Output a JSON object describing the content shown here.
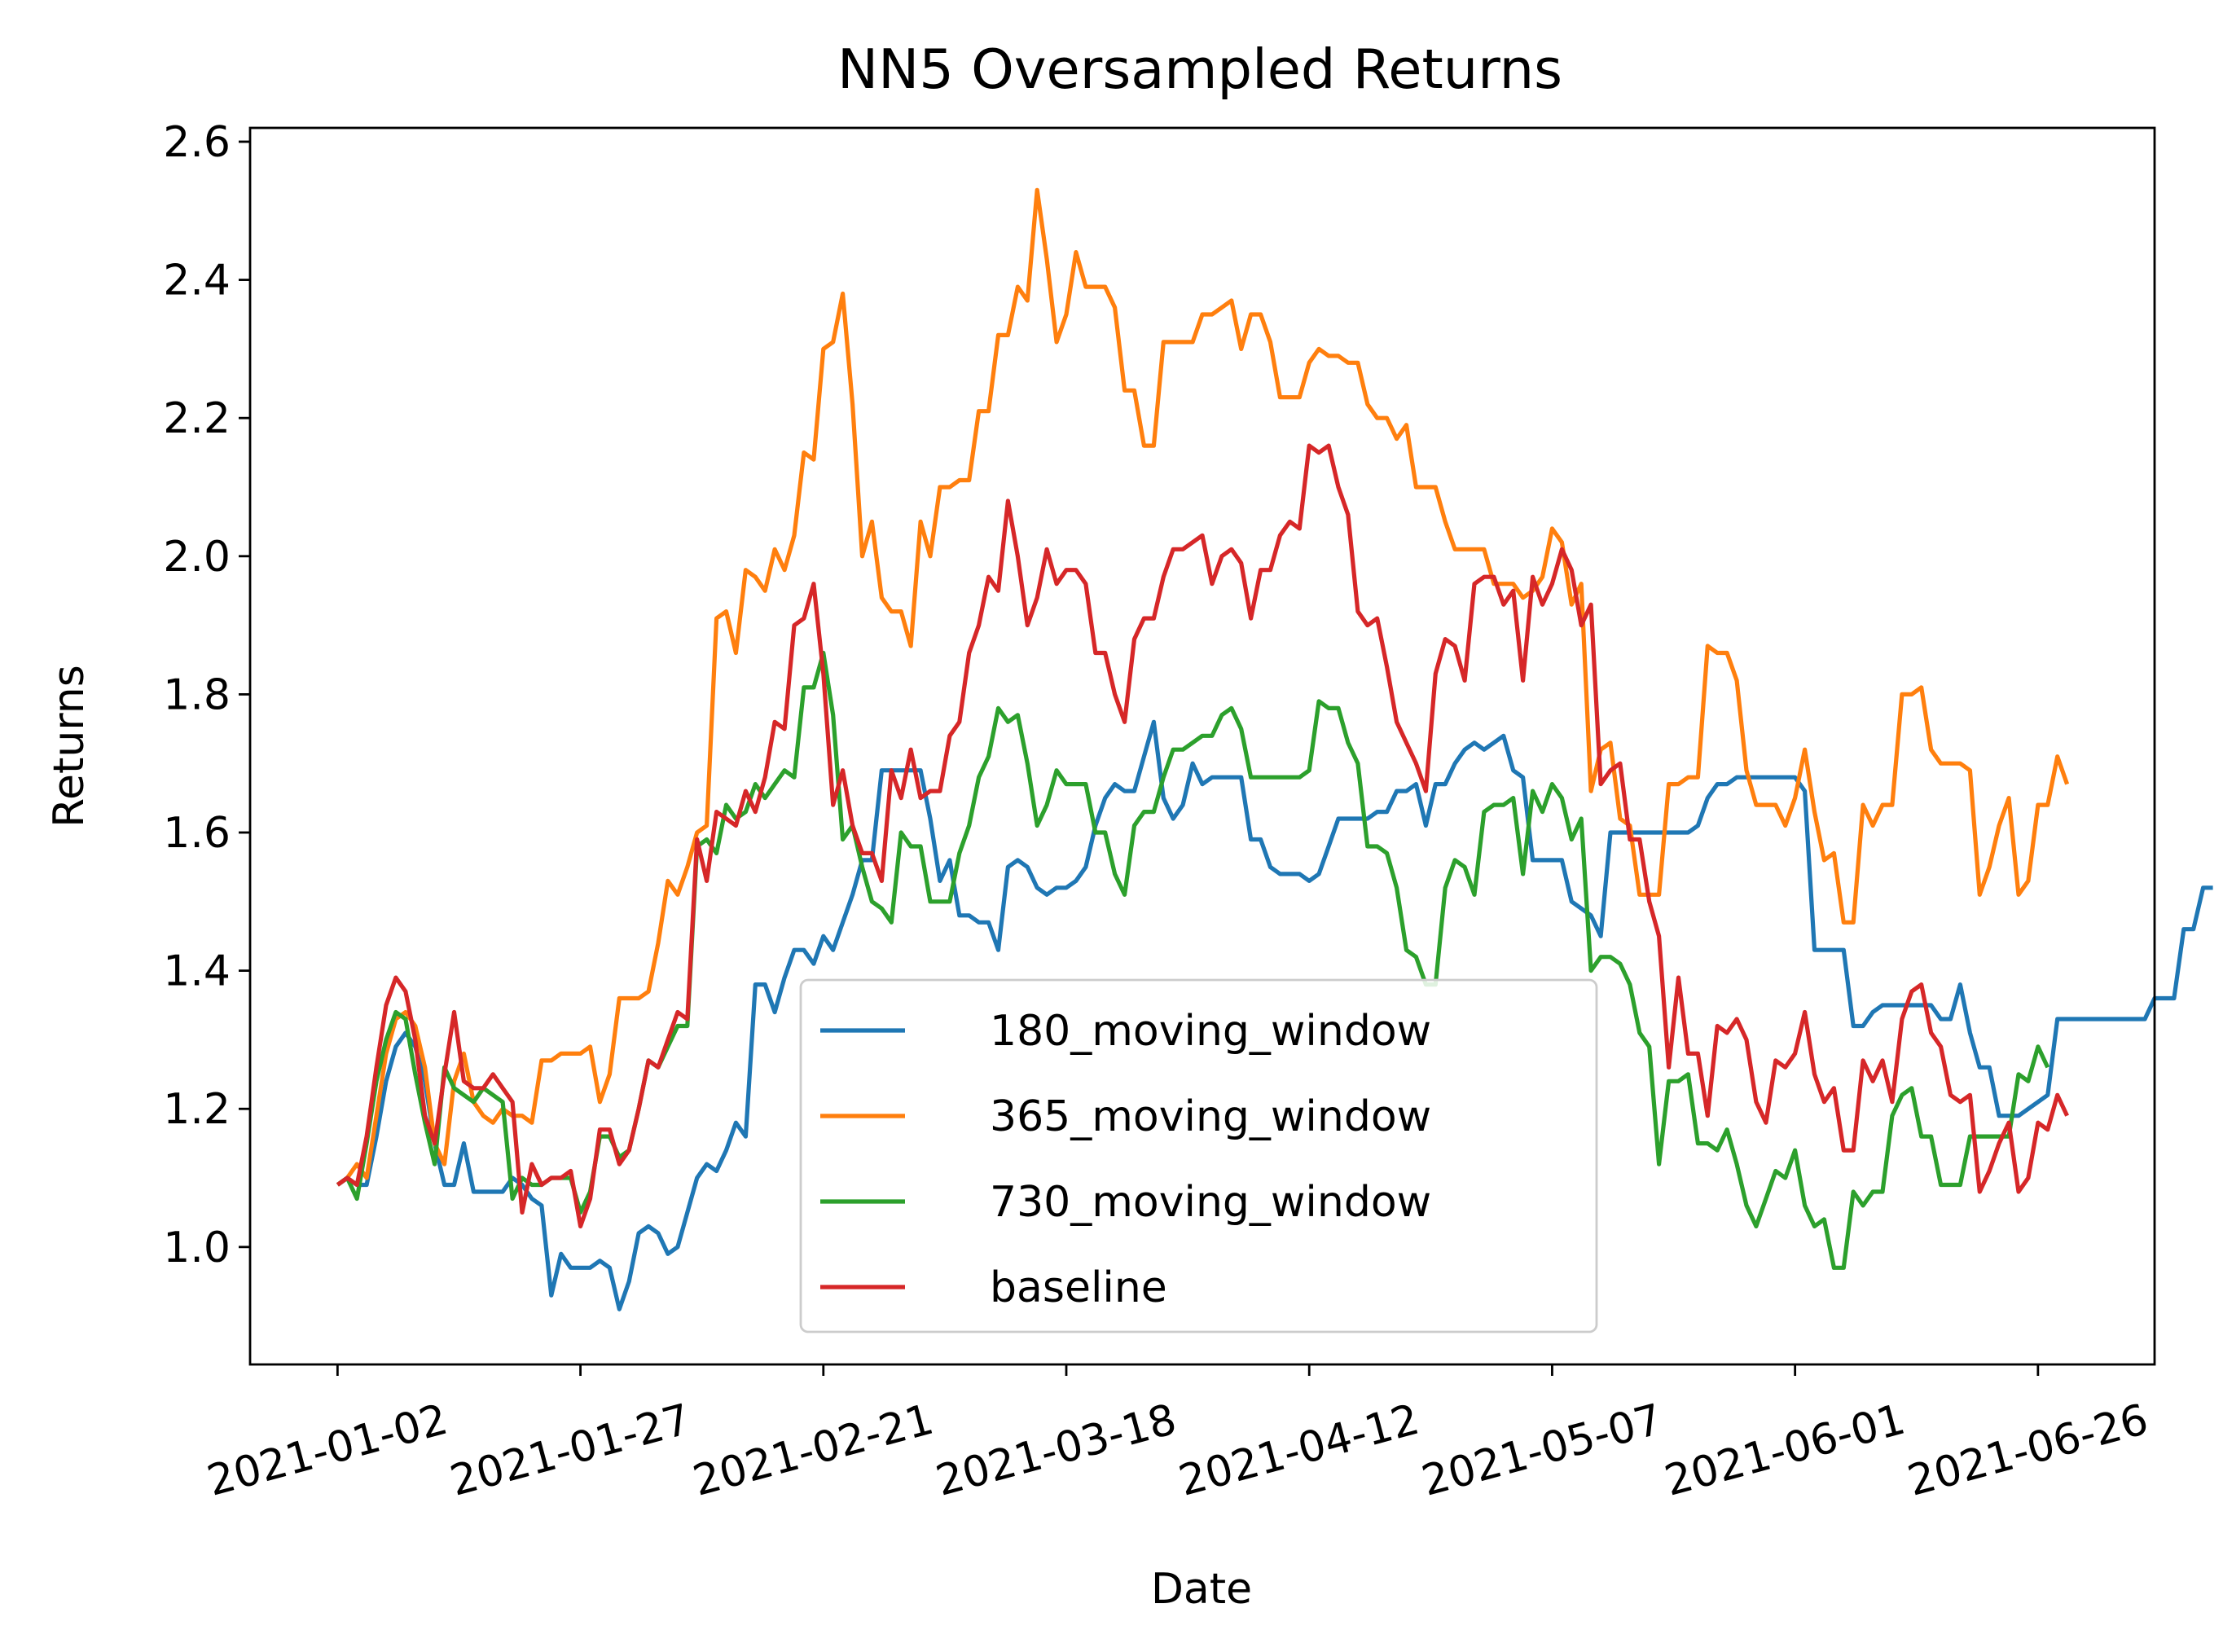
{
  "chart_data": {
    "type": "line",
    "title": "NN5 Oversampled Returns",
    "xlabel": "Date",
    "ylabel": "Returns",
    "x_start": "2021-01-02",
    "x_end": "2021-06-30",
    "xlim": [
      "2020-12-24",
      "2021-07-08"
    ],
    "ylim": [
      0.83,
      2.62
    ],
    "x_ticks": [
      "2021-01-02",
      "2021-01-27",
      "2021-02-21",
      "2021-03-18",
      "2021-04-12",
      "2021-05-07",
      "2021-06-01",
      "2021-06-26"
    ],
    "y_ticks": [
      "1.0",
      "1.2",
      "1.4",
      "1.6",
      "1.8",
      "2.0",
      "2.2",
      "2.4",
      "2.6"
    ],
    "grid": false,
    "legend_position": "lower-center",
    "series": [
      {
        "name": "180_moving_window",
        "color": "#1f77b4",
        "values": [
          1.09,
          1.1,
          1.09,
          1.09,
          1.16,
          1.24,
          1.29,
          1.31,
          1.29,
          1.24,
          1.15,
          1.09,
          1.09,
          1.15,
          1.08,
          1.08,
          1.08,
          1.08,
          1.1,
          1.09,
          1.07,
          1.06,
          0.93,
          0.99,
          0.97,
          0.97,
          0.97,
          0.98,
          0.97,
          0.91,
          0.95,
          1.02,
          1.03,
          1.02,
          0.99,
          1.0,
          1.05,
          1.1,
          1.12,
          1.11,
          1.14,
          1.18,
          1.16,
          1.38,
          1.38,
          1.34,
          1.39,
          1.43,
          1.43,
          1.41,
          1.45,
          1.43,
          1.47,
          1.51,
          1.56,
          1.56,
          1.69,
          1.69,
          1.69,
          1.69,
          1.69,
          1.62,
          1.53,
          1.56,
          1.48,
          1.48,
          1.47,
          1.47,
          1.43,
          1.55,
          1.56,
          1.55,
          1.52,
          1.51,
          1.52,
          1.52,
          1.53,
          1.55,
          1.61,
          1.65,
          1.67,
          1.66,
          1.66,
          1.71,
          1.76,
          1.65,
          1.62,
          1.64,
          1.7,
          1.67,
          1.68,
          1.68,
          1.68,
          1.68,
          1.59,
          1.59,
          1.55,
          1.54,
          1.54,
          1.54,
          1.53,
          1.54,
          1.58,
          1.62,
          1.62,
          1.62,
          1.62,
          1.63,
          1.63,
          1.66,
          1.66,
          1.67,
          1.61,
          1.67,
          1.67,
          1.7,
          1.72,
          1.73,
          1.72,
          1.73,
          1.74,
          1.69,
          1.68,
          1.56,
          1.56,
          1.56,
          1.56,
          1.5,
          1.49,
          1.48,
          1.45,
          1.6,
          1.6,
          1.6,
          1.6,
          1.6,
          1.6,
          1.6,
          1.6,
          1.6,
          1.61,
          1.65,
          1.67,
          1.67,
          1.68,
          1.68,
          1.68,
          1.68,
          1.68,
          1.68,
          1.68,
          1.66,
          1.43,
          1.43,
          1.43,
          1.43,
          1.32,
          1.32,
          1.34,
          1.35,
          1.35,
          1.35,
          1.35,
          1.35,
          1.35,
          1.33,
          1.33,
          1.38,
          1.31,
          1.26,
          1.26,
          1.19,
          1.19,
          1.19,
          1.2,
          1.21,
          1.22,
          1.33,
          1.33,
          1.33,
          1.33,
          1.33,
          1.33,
          1.33,
          1.33,
          1.33,
          1.33,
          1.36,
          1.36,
          1.36,
          1.46,
          1.46,
          1.52,
          1.52
        ]
      },
      {
        "name": "365_moving_window",
        "color": "#ff7f0e",
        "values": [
          1.09,
          1.1,
          1.12,
          1.1,
          1.19,
          1.28,
          1.33,
          1.34,
          1.32,
          1.26,
          1.15,
          1.12,
          1.24,
          1.28,
          1.21,
          1.19,
          1.18,
          1.2,
          1.19,
          1.19,
          1.18,
          1.27,
          1.27,
          1.28,
          1.28,
          1.28,
          1.29,
          1.21,
          1.25,
          1.36,
          1.36,
          1.36,
          1.37,
          1.44,
          1.53,
          1.51,
          1.55,
          1.6,
          1.61,
          1.91,
          1.92,
          1.86,
          1.98,
          1.97,
          1.95,
          2.01,
          1.98,
          2.03,
          2.15,
          2.14,
          2.3,
          2.31,
          2.38,
          2.22,
          2.0,
          2.05,
          1.94,
          1.92,
          1.92,
          1.87,
          2.05,
          2.0,
          2.1,
          2.1,
          2.11,
          2.11,
          2.21,
          2.21,
          2.32,
          2.32,
          2.39,
          2.37,
          2.53,
          2.43,
          2.31,
          2.35,
          2.44,
          2.39,
          2.39,
          2.39,
          2.36,
          2.24,
          2.24,
          2.16,
          2.16,
          2.31,
          2.31,
          2.31,
          2.31,
          2.35,
          2.35,
          2.36,
          2.37,
          2.3,
          2.35,
          2.35,
          2.31,
          2.23,
          2.23,
          2.23,
          2.28,
          2.3,
          2.29,
          2.29,
          2.28,
          2.28,
          2.22,
          2.2,
          2.2,
          2.17,
          2.19,
          2.1,
          2.1,
          2.1,
          2.05,
          2.01,
          2.01,
          2.01,
          2.01,
          1.96,
          1.96,
          1.96,
          1.94,
          1.95,
          1.97,
          2.04,
          2.02,
          1.93,
          1.96,
          1.66,
          1.72,
          1.73,
          1.62,
          1.61,
          1.51,
          1.51,
          1.51,
          1.67,
          1.67,
          1.68,
          1.68,
          1.87,
          1.86,
          1.86,
          1.82,
          1.69,
          1.64,
          1.64,
          1.64,
          1.61,
          1.65,
          1.72,
          1.63,
          1.56,
          1.57,
          1.47,
          1.47,
          1.64,
          1.61,
          1.64,
          1.64,
          1.8,
          1.8,
          1.81,
          1.72,
          1.7,
          1.7,
          1.7,
          1.69,
          1.51,
          1.55,
          1.61,
          1.65,
          1.51,
          1.53,
          1.64,
          1.64,
          1.71,
          1.67
        ]
      },
      {
        "name": "730_moving_window",
        "color": "#2ca02c",
        "values": [
          1.09,
          1.1,
          1.07,
          1.15,
          1.24,
          1.3,
          1.34,
          1.33,
          1.25,
          1.18,
          1.12,
          1.26,
          1.23,
          1.22,
          1.21,
          1.23,
          1.22,
          1.21,
          1.07,
          1.1,
          1.09,
          1.09,
          1.1,
          1.1,
          1.1,
          1.05,
          1.08,
          1.16,
          1.16,
          1.13,
          1.14,
          1.2,
          1.27,
          1.26,
          1.29,
          1.32,
          1.32,
          1.58,
          1.59,
          1.57,
          1.64,
          1.62,
          1.63,
          1.67,
          1.65,
          1.67,
          1.69,
          1.68,
          1.81,
          1.81,
          1.86,
          1.77,
          1.59,
          1.61,
          1.55,
          1.5,
          1.49,
          1.47,
          1.6,
          1.58,
          1.58,
          1.5,
          1.5,
          1.5,
          1.57,
          1.61,
          1.68,
          1.71,
          1.78,
          1.76,
          1.77,
          1.7,
          1.61,
          1.64,
          1.69,
          1.67,
          1.67,
          1.67,
          1.6,
          1.6,
          1.54,
          1.51,
          1.61,
          1.63,
          1.63,
          1.68,
          1.72,
          1.72,
          1.73,
          1.74,
          1.74,
          1.77,
          1.78,
          1.75,
          1.68,
          1.68,
          1.68,
          1.68,
          1.68,
          1.68,
          1.69,
          1.79,
          1.78,
          1.78,
          1.73,
          1.7,
          1.58,
          1.58,
          1.57,
          1.52,
          1.43,
          1.42,
          1.38,
          1.38,
          1.52,
          1.56,
          1.55,
          1.51,
          1.63,
          1.64,
          1.64,
          1.65,
          1.54,
          1.66,
          1.63,
          1.67,
          1.65,
          1.59,
          1.62,
          1.4,
          1.42,
          1.42,
          1.41,
          1.38,
          1.31,
          1.29,
          1.12,
          1.24,
          1.24,
          1.25,
          1.15,
          1.15,
          1.14,
          1.17,
          1.12,
          1.06,
          1.03,
          1.07,
          1.11,
          1.1,
          1.14,
          1.06,
          1.03,
          1.04,
          0.97,
          0.97,
          1.08,
          1.06,
          1.08,
          1.08,
          1.19,
          1.22,
          1.23,
          1.16,
          1.16,
          1.09,
          1.09,
          1.09,
          1.16,
          1.16,
          1.16,
          1.16,
          1.16,
          1.25,
          1.24,
          1.29,
          1.26
        ]
      },
      {
        "name": "baseline",
        "color": "#d62728",
        "values": [
          1.09,
          1.1,
          1.09,
          1.16,
          1.26,
          1.35,
          1.39,
          1.37,
          1.3,
          1.19,
          1.15,
          1.25,
          1.34,
          1.24,
          1.23,
          1.23,
          1.25,
          1.23,
          1.21,
          1.05,
          1.12,
          1.09,
          1.1,
          1.1,
          1.11,
          1.03,
          1.07,
          1.17,
          1.17,
          1.12,
          1.14,
          1.2,
          1.27,
          1.26,
          1.3,
          1.34,
          1.33,
          1.59,
          1.53,
          1.63,
          1.62,
          1.61,
          1.66,
          1.63,
          1.68,
          1.76,
          1.75,
          1.9,
          1.91,
          1.96,
          1.83,
          1.64,
          1.69,
          1.61,
          1.57,
          1.57,
          1.53,
          1.69,
          1.65,
          1.72,
          1.65,
          1.66,
          1.66,
          1.74,
          1.76,
          1.86,
          1.9,
          1.97,
          1.95,
          2.08,
          2.0,
          1.9,
          1.94,
          2.01,
          1.96,
          1.98,
          1.98,
          1.96,
          1.86,
          1.86,
          1.8,
          1.76,
          1.88,
          1.91,
          1.91,
          1.97,
          2.01,
          2.01,
          2.02,
          2.03,
          1.96,
          2.0,
          2.01,
          1.99,
          1.91,
          1.98,
          1.98,
          2.03,
          2.05,
          2.04,
          2.16,
          2.15,
          2.16,
          2.1,
          2.06,
          1.92,
          1.9,
          1.91,
          1.84,
          1.76,
          1.73,
          1.7,
          1.66,
          1.83,
          1.88,
          1.87,
          1.82,
          1.96,
          1.97,
          1.97,
          1.93,
          1.95,
          1.82,
          1.97,
          1.93,
          1.96,
          2.01,
          1.98,
          1.9,
          1.93,
          1.67,
          1.69,
          1.7,
          1.59,
          1.59,
          1.5,
          1.45,
          1.26,
          1.39,
          1.28,
          1.28,
          1.19,
          1.32,
          1.31,
          1.33,
          1.3,
          1.21,
          1.18,
          1.27,
          1.26,
          1.28,
          1.34,
          1.25,
          1.21,
          1.23,
          1.14,
          1.14,
          1.27,
          1.24,
          1.27,
          1.21,
          1.33,
          1.37,
          1.38,
          1.31,
          1.29,
          1.22,
          1.21,
          1.22,
          1.08,
          1.11,
          1.15,
          1.18,
          1.08,
          1.1,
          1.18,
          1.17,
          1.22,
          1.19
        ]
      }
    ]
  }
}
